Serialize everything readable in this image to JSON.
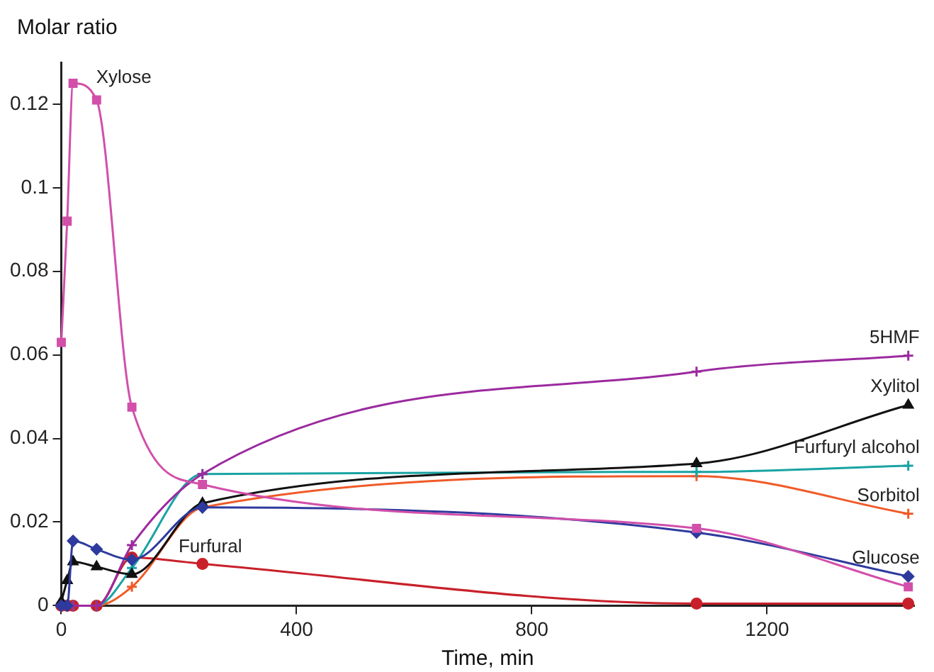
{
  "chart_data": {
    "type": "line",
    "ylabel": "Molar ratio",
    "xlabel": "Time, min",
    "x": [
      0,
      10,
      20,
      60,
      120,
      240,
      1080,
      1440
    ],
    "xlim": [
      0,
      1450
    ],
    "xticks": [
      0,
      400,
      800,
      1200
    ],
    "ylim": [
      0,
      0.13
    ],
    "yticks": [
      0,
      0.02,
      0.04,
      0.06,
      0.08,
      0.1,
      0.12
    ],
    "grid": false,
    "legend": false,
    "line_style": "solid",
    "series": [
      {
        "name": "Xylose",
        "color": "#d24faa",
        "marker": "square",
        "values": [
          0.063,
          0.092,
          0.125,
          0.121,
          0.0475,
          0.029,
          0.0185,
          0.0045
        ]
      },
      {
        "name": "Glucose",
        "color": "#2e3a9e",
        "marker": "diamond",
        "values": [
          0,
          0,
          0.0155,
          0.0135,
          0.011,
          0.0235,
          0.0175,
          0.007
        ]
      },
      {
        "name": "Xylitol",
        "color": "#111111",
        "marker": "triangle",
        "values": [
          0.001,
          0.006,
          0.0105,
          0.0093,
          0.0075,
          0.0245,
          0.034,
          0.048
        ]
      },
      {
        "name": "5HMF",
        "color": "#9b2a9f",
        "marker": "cross",
        "values": [
          0,
          0,
          0,
          0,
          0.0145,
          0.0315,
          0.056,
          0.0598
        ]
      },
      {
        "name": "Furfuryl alcohol",
        "color": "#19a3a3",
        "marker": "cross",
        "values": [
          null,
          null,
          0,
          0,
          0.009,
          0.0315,
          0.032,
          0.0335
        ]
      },
      {
        "name": "Sorbitol",
        "color": "#f05a28",
        "marker": "cross",
        "values": [
          0,
          0,
          0,
          0,
          0.0045,
          0.0235,
          0.031,
          0.022
        ]
      },
      {
        "name": "Furfural",
        "color": "#c8202a",
        "marker": "circle",
        "values": [
          0,
          0,
          0,
          0,
          0.0115,
          0.01,
          0.0005,
          0.0005
        ]
      }
    ]
  }
}
